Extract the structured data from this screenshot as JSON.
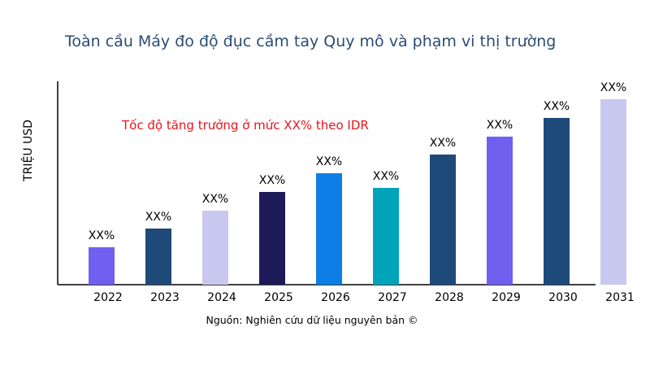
{
  "chart_data": {
    "type": "bar",
    "title": "Toàn cầu Máy đo độ đục cầm tay Quy mô và phạm vi thị trường",
    "ylabel": "TRIỆU USD",
    "xlabel": "",
    "annotation": "Tốc độ tăng trưởng ở mức XX% theo IDR",
    "source": "Nguồn: Nghiên cứu dữ liệu nguyên bản ©",
    "categories": [
      "2022",
      "2023",
      "2024",
      "2025",
      "2026",
      "2027",
      "2028",
      "2029",
      "2030",
      "2031"
    ],
    "values": [
      46,
      69,
      91,
      114,
      137,
      119,
      160,
      182,
      205,
      228
    ],
    "data_labels": [
      "XX%",
      "XX%",
      "XX%",
      "XX%",
      "XX%",
      "XX%",
      "XX%",
      "XX%",
      "XX%",
      "XX%"
    ],
    "colors": [
      "#7060f0",
      "#1e4a7a",
      "#c8c8f0",
      "#1e1a5a",
      "#0d7ee6",
      "#00a3b8",
      "#1e4a7a",
      "#7060f0",
      "#1e4a7a",
      "#c8c8f0"
    ],
    "ylim": [
      0,
      250
    ],
    "grid": false,
    "y_ticks_shown": false
  }
}
